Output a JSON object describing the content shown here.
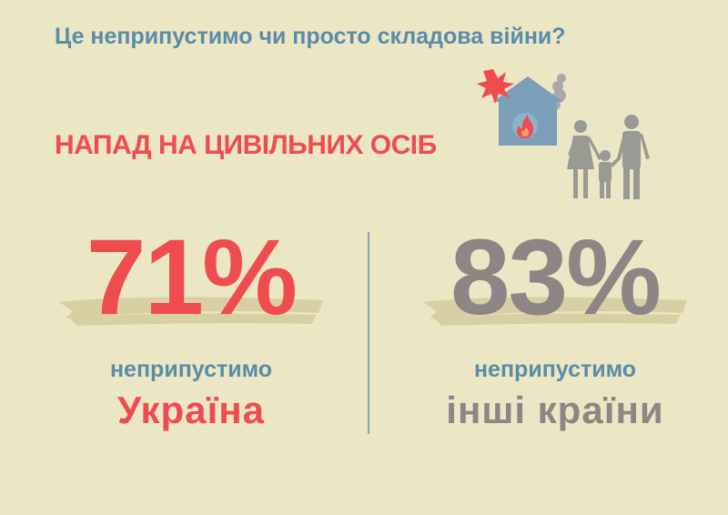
{
  "header": {
    "question": "Це неприпустимо чи просто складова війни?",
    "category": "НАПАД НА ЦИВІЛЬНИХ ОСІБ"
  },
  "illustration": {
    "icons": [
      "burning-house-icon",
      "explosion-icon",
      "smoke-icon",
      "fire-icon",
      "family-icon"
    ]
  },
  "stats": [
    {
      "percent": "71%",
      "caption": "неприпустимо",
      "group": "Україна",
      "color": "#ef4c50"
    },
    {
      "percent": "83%",
      "caption": "неприпустимо",
      "group": "інші країни",
      "color": "#8e8585"
    }
  ],
  "colors": {
    "background": "#ebe6c4",
    "blue": "#5b8ca8",
    "red": "#ef4c50",
    "gray": "#8e8585",
    "swash": "#d8cfa2"
  }
}
